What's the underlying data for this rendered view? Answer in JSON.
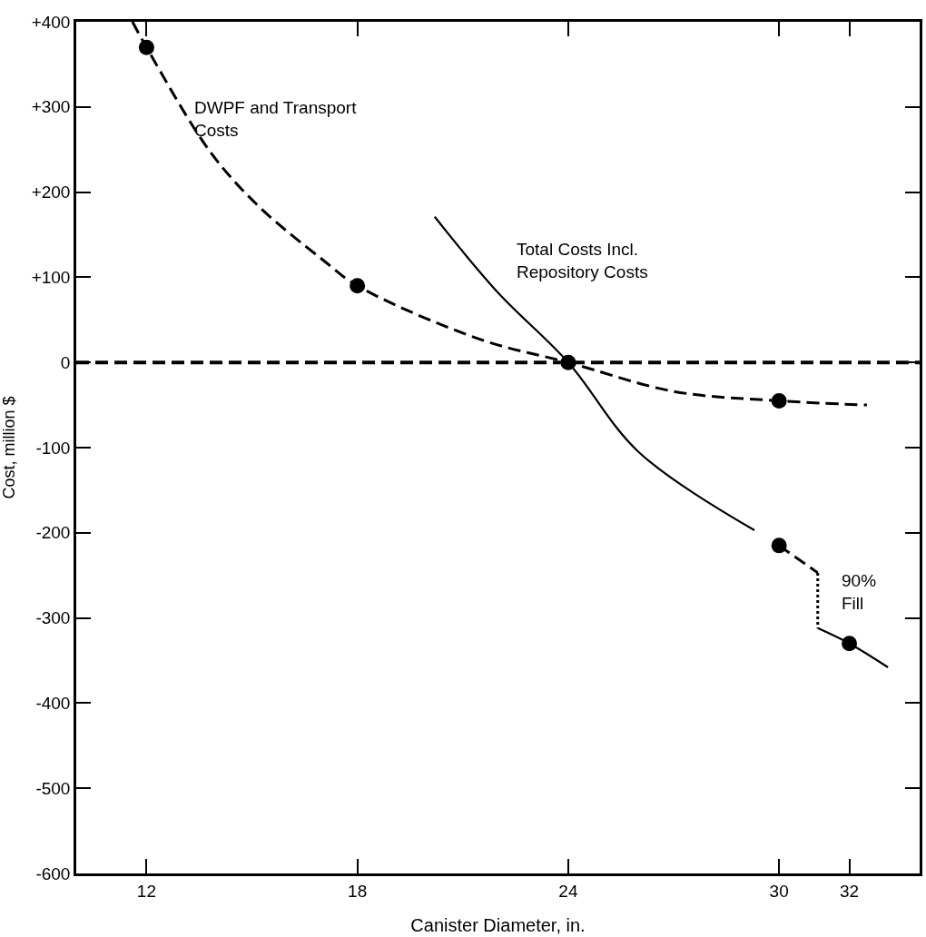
{
  "chart_data": {
    "type": "line",
    "xlabel": "Canister Diameter, in.",
    "ylabel": "Cost, million $",
    "xlim": [
      10,
      34
    ],
    "xticks": [
      12,
      18,
      24,
      30,
      32
    ],
    "ylim": [
      -600,
      400
    ],
    "yticks": [
      {
        "value": 400,
        "label": "+400"
      },
      {
        "value": 300,
        "label": "+300"
      },
      {
        "value": 200,
        "label": "+200"
      },
      {
        "value": 100,
        "label": "+100"
      },
      0,
      -100,
      -200,
      -300,
      -400,
      -500,
      -600
    ],
    "series": [
      {
        "line_style": "dashed",
        "color": "#000000",
        "x": [
          11.6,
          12,
          13.8,
          15.2,
          17.0,
          18,
          21.5,
          24,
          27.0,
          30,
          32.5
        ],
        "values": [
          400,
          370,
          248,
          183,
          121,
          90,
          27,
          0,
          -34,
          -45,
          -50
        ]
      },
      {
        "line_style": "solid",
        "color": "#000000",
        "x": [
          20.2,
          22,
          24,
          26.0,
          29.3
        ],
        "values": [
          171,
          82,
          0,
          -105,
          -197
        ]
      },
      {
        "type": "line",
        "line_style": "dashed",
        "color": "#000000",
        "x": [
          30,
          31.1
        ],
        "values": [
          -215,
          -247
        ]
      },
      {
        "type": "line",
        "line_style": "dotted",
        "color": "#000000",
        "x": [
          31.1,
          31.1
        ],
        "values": [
          -247,
          -312
        ]
      },
      {
        "type": "line",
        "line_style": "solid",
        "color": "#000000",
        "x": [
          31.1,
          32,
          33.1
        ],
        "values": [
          -312,
          -330,
          -358
        ]
      },
      {
        "type": "scatter",
        "marker": "circle",
        "color": "#000000",
        "x": [
          12,
          18,
          24,
          30,
          30,
          32
        ],
        "values": [
          370,
          90,
          0,
          -45,
          -215,
          -330
        ]
      }
    ],
    "ref_lines": [
      {
        "axis": "y",
        "value": 0,
        "line_style": "dashed",
        "color": "#000000"
      }
    ],
    "annotations": [
      {
        "text": "DWPF and Transport\nCosts",
        "x": 13.3,
        "y": 286
      },
      "Total Costs Incl.\nRepository Costs",
      "90%\nFill"
    ]
  }
}
